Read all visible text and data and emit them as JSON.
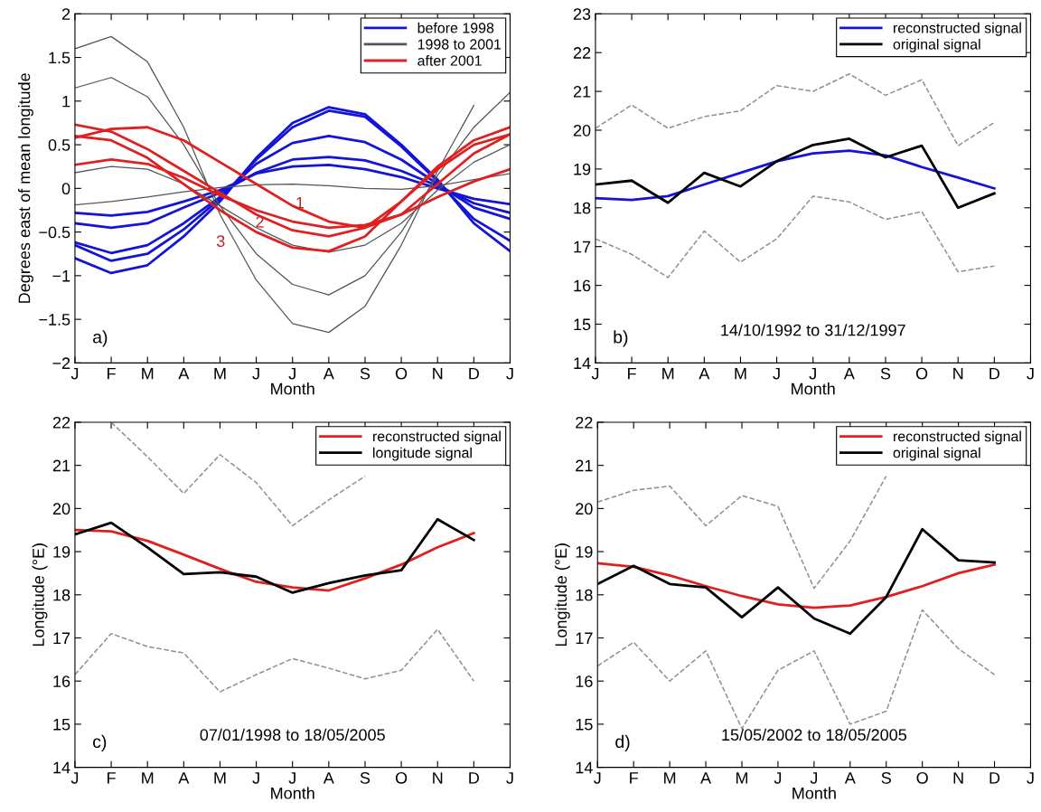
{
  "chart_data": [
    {
      "type": "line",
      "xlabel": "Month",
      "ylabel": "Degrees east of mean longitude",
      "ylim": [
        -2,
        2
      ],
      "categories": [
        "J",
        "F",
        "M",
        "A",
        "M",
        "J",
        "J",
        "A",
        "S",
        "O",
        "N",
        "D",
        "J"
      ],
      "yticks": [
        -2,
        -1.5,
        -1,
        -0.5,
        0,
        0.5,
        1,
        1.5,
        2
      ],
      "legend": "top right",
      "line_style": "solid",
      "marker": "none",
      "series": [
        {
          "name": "before 1998",
          "color": "#1414d8",
          "values": [
            -0.8,
            -0.97,
            -0.88,
            -0.55,
            -0.15,
            0.35,
            0.75,
            0.93,
            0.85,
            0.5,
            0.1,
            -0.4,
            -0.72
          ]
        },
        {
          "color": "#1414d8",
          "values": [
            -0.65,
            -0.83,
            -0.75,
            -0.47,
            -0.12,
            0.33,
            0.7,
            0.89,
            0.82,
            0.48,
            0.08,
            -0.35,
            -0.6
          ]
        },
        {
          "color": "#1414d8",
          "values": [
            -0.62,
            -0.74,
            -0.65,
            -0.4,
            -0.1,
            0.28,
            0.52,
            0.6,
            0.53,
            0.33,
            0.05,
            -0.22,
            -0.35
          ]
        },
        {
          "color": "#1414d8",
          "values": [
            -0.4,
            -0.45,
            -0.4,
            -0.22,
            -0.05,
            0.18,
            0.33,
            0.36,
            0.32,
            0.2,
            0.03,
            -0.17,
            -0.28
          ]
        },
        {
          "color": "#1414d8",
          "values": [
            -0.28,
            -0.31,
            -0.27,
            -0.15,
            -0.02,
            0.17,
            0.25,
            0.27,
            0.22,
            0.13,
            0.0,
            -0.12,
            -0.18
          ]
        },
        {
          "name": "1998 to 2001",
          "color": "#555555",
          "values": [
            1.6,
            1.74,
            1.45,
            0.7,
            -0.3,
            -1.05,
            -1.55,
            -1.65,
            -1.35,
            -0.65,
            0.2,
            0.95,
            null
          ]
        },
        {
          "color": "#555555",
          "values": [
            1.15,
            1.27,
            1.05,
            0.5,
            -0.2,
            -0.75,
            -1.1,
            -1.22,
            -1.0,
            -0.5,
            0.15,
            0.7,
            1.1
          ]
        },
        {
          "color": "#555555",
          "values": [
            0.18,
            0.25,
            0.22,
            0.05,
            -0.2,
            -0.45,
            -0.65,
            -0.73,
            -0.65,
            -0.4,
            -0.02,
            0.3,
            0.5
          ]
        },
        {
          "color": "#555555",
          "values": [
            -0.19,
            -0.15,
            -0.1,
            -0.04,
            0.01,
            0.04,
            0.05,
            0.03,
            0.0,
            -0.01,
            0.03,
            0.1,
            0.17
          ]
        },
        {
          "name": "after 2001",
          "color": "#e02020",
          "values": [
            0.58,
            0.68,
            0.7,
            0.55,
            0.3,
            0.05,
            -0.2,
            -0.38,
            -0.45,
            -0.3,
            0.05,
            0.4,
            0.62
          ]
        },
        {
          "color": "#e02020",
          "values": [
            0.73,
            0.65,
            0.45,
            0.2,
            -0.05,
            -0.3,
            -0.48,
            -0.55,
            -0.45,
            -0.15,
            0.22,
            0.5,
            0.62
          ]
        },
        {
          "color": "#e02020",
          "values": [
            0.6,
            0.55,
            0.35,
            0.05,
            -0.25,
            -0.5,
            -0.68,
            -0.72,
            -0.55,
            -0.15,
            0.25,
            0.55,
            0.7
          ]
        },
        {
          "color": "#e02020",
          "values": [
            0.27,
            0.33,
            0.28,
            0.12,
            -0.08,
            -0.25,
            -0.38,
            -0.45,
            -0.42,
            -0.3,
            -0.1,
            0.08,
            0.22
          ]
        }
      ],
      "annotations": [
        "a)",
        "1",
        "2",
        "3"
      ]
    },
    {
      "type": "line",
      "xlabel": "Month",
      "ylim": [
        14,
        23
      ],
      "categories": [
        "J",
        "F",
        "M",
        "A",
        "M",
        "J",
        "J",
        "A",
        "S",
        "O",
        "N",
        "D",
        "J"
      ],
      "yticks": [
        14,
        15,
        16,
        17,
        18,
        19,
        20,
        21,
        22,
        23
      ],
      "legend": "top right",
      "marker": "none",
      "series": [
        {
          "name": "reconstructed signal",
          "color": "#1414d8",
          "line_style": "solid",
          "values": [
            18.25,
            18.2,
            18.3,
            18.6,
            18.9,
            19.2,
            19.4,
            19.47,
            19.35,
            19.05,
            18.78,
            18.5,
            null
          ]
        },
        {
          "name": "original signal",
          "color": "#000000",
          "line_style": "solid",
          "values": [
            18.6,
            18.7,
            18.13,
            18.9,
            18.55,
            19.2,
            19.62,
            19.78,
            19.3,
            19.6,
            18.0,
            18.37,
            null
          ]
        },
        {
          "color": "#909090",
          "line_style": "dashed",
          "values": [
            20.05,
            20.65,
            20.05,
            20.35,
            20.5,
            21.15,
            21.0,
            21.45,
            20.9,
            21.3,
            19.6,
            20.2,
            null
          ]
        },
        {
          "color": "#909090",
          "line_style": "dashed",
          "values": [
            17.2,
            16.8,
            16.2,
            17.4,
            16.6,
            17.2,
            18.3,
            18.15,
            17.7,
            17.9,
            16.35,
            16.5,
            null
          ]
        }
      ],
      "annotations": [
        "b)",
        "14/10/1992 to 31/12/1997"
      ]
    },
    {
      "type": "line",
      "xlabel": "Month",
      "ylabel": "Longitude (°E)",
      "ylim": [
        14,
        22
      ],
      "categories": [
        "J",
        "F",
        "M",
        "A",
        "M",
        "J",
        "J",
        "A",
        "S",
        "O",
        "N",
        "D",
        "J"
      ],
      "yticks": [
        14,
        15,
        16,
        17,
        18,
        19,
        20,
        21,
        22
      ],
      "legend": "top right",
      "marker": "none",
      "series": [
        {
          "name": "reconstructed signal",
          "color": "#e02020",
          "line_style": "solid",
          "values": [
            19.5,
            19.47,
            19.25,
            18.93,
            18.6,
            18.3,
            18.17,
            18.1,
            18.38,
            18.7,
            19.1,
            19.43,
            null
          ]
        },
        {
          "name": "longitude signal",
          "color": "#000000",
          "line_style": "solid",
          "values": [
            19.4,
            19.67,
            19.1,
            18.48,
            18.52,
            18.42,
            18.05,
            18.27,
            18.45,
            18.57,
            19.75,
            19.27,
            null
          ]
        },
        {
          "color": "#909090",
          "line_style": "dashed",
          "values": [
            null,
            22.0,
            21.2,
            20.35,
            21.25,
            20.6,
            19.6,
            20.2,
            20.75,
            null,
            null,
            null,
            null
          ]
        },
        {
          "color": "#909090",
          "line_style": "dashed",
          "values": [
            16.15,
            17.1,
            16.8,
            16.65,
            15.75,
            16.15,
            16.52,
            16.3,
            16.05,
            16.25,
            17.2,
            16.0,
            null
          ]
        }
      ],
      "annotations": [
        "c)",
        "07/01/1998 to 18/05/2005"
      ]
    },
    {
      "type": "line",
      "xlabel": "Month",
      "ylabel": "Longitude (°E)",
      "ylim": [
        14,
        22
      ],
      "categories": [
        "J",
        "F",
        "M",
        "A",
        "M",
        "J",
        "J",
        "A",
        "S",
        "O",
        "N",
        "D",
        "J"
      ],
      "yticks": [
        14,
        15,
        16,
        17,
        18,
        19,
        20,
        21,
        22
      ],
      "legend": "top right",
      "marker": "none",
      "series": [
        {
          "name": "reconstructed signal",
          "color": "#e02020",
          "line_style": "solid",
          "values": [
            18.73,
            18.65,
            18.45,
            18.2,
            17.97,
            17.78,
            17.7,
            17.75,
            17.95,
            18.2,
            18.5,
            18.7,
            null
          ]
        },
        {
          "name": "original signal",
          "color": "#000000",
          "line_style": "solid",
          "values": [
            18.25,
            18.67,
            18.25,
            18.17,
            17.48,
            18.17,
            17.45,
            17.1,
            17.95,
            19.52,
            18.8,
            18.75,
            null
          ]
        },
        {
          "color": "#909090",
          "line_style": "dashed",
          "values": [
            20.15,
            20.42,
            20.52,
            19.6,
            20.3,
            20.05,
            18.15,
            19.25,
            20.75,
            null,
            null,
            null,
            null
          ]
        },
        {
          "color": "#909090",
          "line_style": "dashed",
          "values": [
            16.35,
            16.9,
            16.0,
            16.7,
            14.9,
            16.25,
            16.7,
            15.0,
            15.3,
            17.65,
            16.75,
            16.15,
            null
          ]
        }
      ],
      "annotations": [
        "d)",
        "15/05/2002 to 18/05/2005"
      ]
    }
  ]
}
